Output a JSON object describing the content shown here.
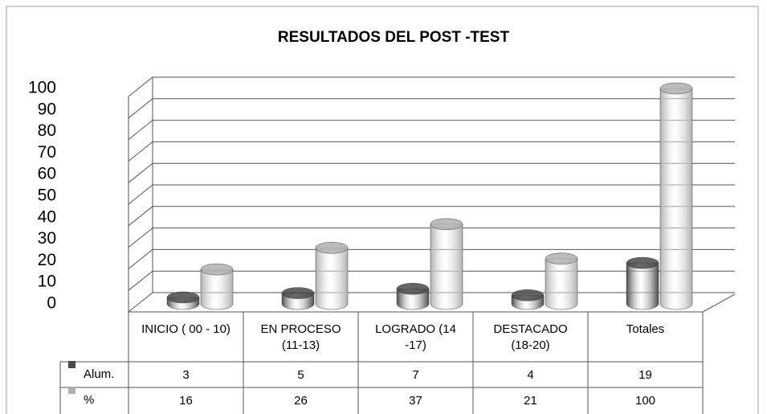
{
  "chart_data": {
    "type": "bar3d",
    "title": "RESULTADOS DEL POST -TEST",
    "categories": [
      "INICIO ( 00 - 10)",
      "EN PROCESO (11-13)",
      "LOGRADO (14 -17)",
      "DESTACADO (18-20)",
      "Totales"
    ],
    "series": [
      {
        "name": "Alum.",
        "color": "#4a4a4a",
        "values": [
          3,
          5,
          7,
          4,
          19
        ]
      },
      {
        "name": "%",
        "color": "#b0b0b0",
        "values": [
          16,
          26,
          37,
          21,
          100
        ]
      }
    ],
    "ylim": [
      0,
      100
    ],
    "yticks": [
      0,
      10,
      20,
      30,
      40,
      50,
      60,
      70,
      80,
      90,
      100
    ],
    "grid": true
  }
}
